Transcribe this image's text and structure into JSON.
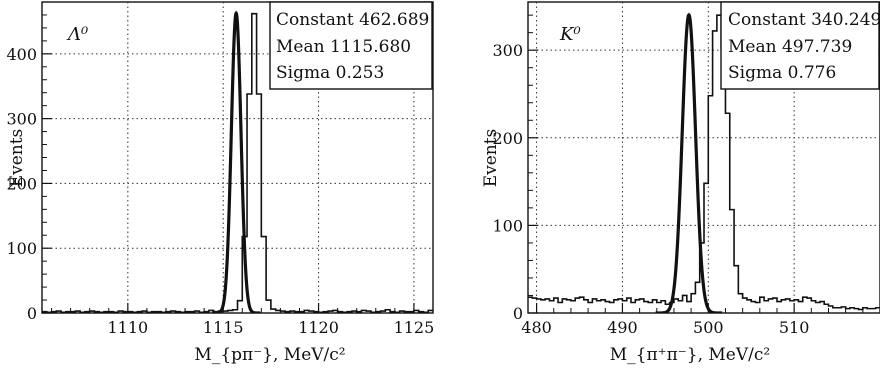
{
  "chart_data": [
    {
      "type": "line",
      "panel_label": "Λ⁰",
      "xlabel": "M_{pπ⁻}, MeV/c²",
      "ylabel": "Events",
      "xlim": [
        1105.5,
        1126.0
      ],
      "ylim": [
        0,
        480
      ],
      "xticks": [
        1110,
        1115,
        1120,
        1125
      ],
      "yticks": [
        0,
        100,
        200,
        300,
        400
      ],
      "grid": true,
      "stats": [
        "Constant 462.689",
        "Mean 1115.680",
        "Sigma 0.253"
      ],
      "fit": {
        "function": "gaussian",
        "constant": 462.689,
        "mean": 1115.68,
        "sigma": 0.253
      },
      "histogram": {
        "bin_width": 0.25,
        "x_start": 1105.5,
        "values": [
          2,
          1,
          2,
          3,
          1,
          2,
          2,
          3,
          1,
          2,
          3,
          2,
          1,
          2,
          2,
          1,
          3,
          2,
          2,
          1,
          2,
          3,
          1,
          2,
          2,
          1,
          2,
          3,
          2,
          1,
          2,
          2,
          3,
          1,
          2,
          4,
          2,
          3,
          3,
          4,
          5,
          19,
          118,
          338,
          462,
          338,
          118,
          20,
          6,
          4,
          3,
          2,
          3,
          2,
          2,
          4,
          3,
          2,
          1,
          2,
          3,
          4,
          2,
          1,
          2,
          3,
          2,
          4,
          3,
          1,
          2,
          3,
          5,
          2,
          1,
          3,
          2,
          2,
          4,
          2,
          1,
          4
        ]
      }
    },
    {
      "type": "line",
      "panel_label": "K⁰",
      "xlabel": "M_{π⁺π⁻}, MeV/c²",
      "ylabel": "Events",
      "xlim": [
        479.0,
        520.0
      ],
      "ylim": [
        0,
        355
      ],
      "xticks": [
        480,
        490,
        500,
        510
      ],
      "yticks": [
        0,
        100,
        200,
        300
      ],
      "grid": true,
      "stats": [
        "Constant 340.249",
        "Mean 497.739",
        "Sigma 0.776"
      ],
      "fit": {
        "function": "gaussian",
        "constant": 340.249,
        "mean": 497.739,
        "sigma": 0.776
      },
      "histogram": {
        "bin_width": 0.5,
        "x_start": 479.0,
        "values": [
          18,
          17,
          16,
          15,
          16,
          14,
          17,
          12,
          16,
          15,
          14,
          17,
          18,
          15,
          12,
          16,
          14,
          15,
          13,
          12,
          15,
          16,
          14,
          17,
          12,
          15,
          16,
          13,
          12,
          15,
          12,
          14,
          10,
          12,
          16,
          14,
          20,
          13,
          22,
          35,
          80,
          148,
          248,
          322,
          340,
          302,
          228,
          118,
          54,
          22,
          17,
          15,
          13,
          12,
          18,
          14,
          16,
          17,
          13,
          15,
          16,
          14,
          15,
          13,
          18,
          17,
          14,
          12,
          13,
          10,
          8,
          6,
          6,
          7,
          5,
          6,
          5,
          4,
          6,
          5,
          5,
          6
        ]
      }
    }
  ]
}
